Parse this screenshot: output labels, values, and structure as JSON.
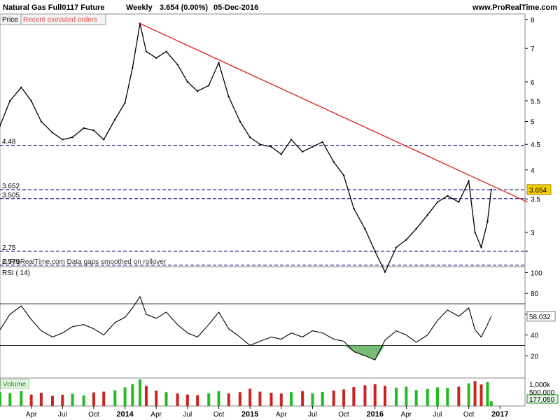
{
  "header": {
    "title": "Natural Gas Full0117 Future",
    "period": "Weekly",
    "price_change": "3.654 (0.00%)",
    "date": "05-Dec-2016",
    "website": "www.ProRealTime.com"
  },
  "tabs": {
    "price": "Price",
    "recent_orders": "Recent executed orders"
  },
  "notice": "© ProRealTime.com Data gaps smoothed on rollover",
  "colors": {
    "up_volume": "#22bb22",
    "down_volume": "#cc2222",
    "trendline": "#e02020",
    "level_line": "#000080",
    "last_price_bg": "#f5d000",
    "rsi_fill_low": "#55aa55"
  },
  "x_axis_labels": [
    {
      "label": "Apr",
      "x": 2013.25
    },
    {
      "label": "Jul",
      "x": 2013.5
    },
    {
      "label": "Oct",
      "x": 2013.75
    },
    {
      "label": "2014",
      "x": 2014.0
    },
    {
      "label": "Apr",
      "x": 2014.25
    },
    {
      "label": "Jul",
      "x": 2014.5
    },
    {
      "label": "Oct",
      "x": 2014.75
    },
    {
      "label": "2015",
      "x": 2015.0
    },
    {
      "label": "Apr",
      "x": 2015.25
    },
    {
      "label": "Jul",
      "x": 2015.5
    },
    {
      "label": "Oct",
      "x": 2015.75
    },
    {
      "label": "2016",
      "x": 2016.0
    },
    {
      "label": "Apr",
      "x": 2016.25
    },
    {
      "label": "Jul",
      "x": 2016.5
    },
    {
      "label": "Oct",
      "x": 2016.75
    },
    {
      "label": "2017",
      "x": 2017.0
    }
  ],
  "chart_data": [
    {
      "type": "line",
      "panel": "price",
      "ylim": [
        2.57,
        8.15
      ],
      "log_scale": true,
      "y_ticks": [
        2.75,
        3,
        3.5,
        4,
        4.5,
        5,
        5.5,
        6,
        7,
        8
      ],
      "y_tick_labels": [
        "",
        "3",
        "3.5",
        "4",
        "4.5",
        "5",
        "5.5",
        "6",
        "7",
        "8"
      ],
      "x_range": [
        2013.0,
        2017.2
      ],
      "horizontal_levels": [
        {
          "value": 4.48,
          "label": "4.48"
        },
        {
          "value": 3.652,
          "label": "3.652"
        },
        {
          "value": 3.505,
          "label": "3.505"
        },
        {
          "value": 2.75,
          "label": "2.75"
        },
        {
          "value": 2.579,
          "label": "2.579"
        }
      ],
      "trendline": {
        "x": [
          2014.12,
          2017.22
        ],
        "y": [
          7.85,
          3.45
        ]
      },
      "last_price": 3.654,
      "x": [
        2013.0,
        2013.08,
        2013.17,
        2013.25,
        2013.33,
        2013.42,
        2013.5,
        2013.58,
        2013.67,
        2013.75,
        2013.83,
        2013.92,
        2014.0,
        2014.06,
        2014.12,
        2014.17,
        2014.25,
        2014.33,
        2014.42,
        2014.5,
        2014.58,
        2014.67,
        2014.75,
        2014.83,
        2014.92,
        2015.0,
        2015.08,
        2015.17,
        2015.25,
        2015.33,
        2015.42,
        2015.5,
        2015.58,
        2015.67,
        2015.75,
        2015.83,
        2015.92,
        2016.0,
        2016.08,
        2016.17,
        2016.25,
        2016.33,
        2016.42,
        2016.5,
        2016.58,
        2016.67,
        2016.75,
        2016.8,
        2016.85,
        2016.9,
        2016.93
      ],
      "y": [
        4.9,
        5.5,
        5.85,
        5.5,
        5.0,
        4.75,
        4.6,
        4.65,
        4.85,
        4.8,
        4.6,
        5.05,
        5.45,
        6.4,
        7.85,
        6.9,
        6.7,
        6.9,
        6.5,
        6.0,
        5.75,
        5.9,
        6.55,
        5.6,
        5.0,
        4.65,
        4.5,
        4.45,
        4.3,
        4.6,
        4.35,
        4.45,
        4.55,
        4.15,
        3.9,
        3.35,
        3.05,
        2.75,
        2.5,
        2.8,
        2.9,
        3.05,
        3.25,
        3.45,
        3.55,
        3.45,
        3.8,
        3.0,
        2.8,
        3.15,
        3.654
      ]
    },
    {
      "type": "line",
      "panel": "rsi",
      "title": "RSI ( 14)",
      "ylim": [
        0,
        105
      ],
      "y_ticks": [
        20,
        40,
        60,
        80,
        100
      ],
      "levels": [
        70,
        30
      ],
      "last_value": 58.032,
      "x": [
        2013.0,
        2013.08,
        2013.17,
        2013.25,
        2013.33,
        2013.42,
        2013.5,
        2013.58,
        2013.67,
        2013.75,
        2013.83,
        2013.92,
        2014.0,
        2014.06,
        2014.12,
        2014.17,
        2014.25,
        2014.33,
        2014.42,
        2014.5,
        2014.58,
        2014.67,
        2014.75,
        2014.83,
        2014.92,
        2015.0,
        2015.08,
        2015.17,
        2015.25,
        2015.33,
        2015.42,
        2015.5,
        2015.58,
        2015.67,
        2015.75,
        2015.83,
        2015.92,
        2016.0,
        2016.08,
        2016.17,
        2016.25,
        2016.33,
        2016.42,
        2016.5,
        2016.58,
        2016.67,
        2016.75,
        2016.8,
        2016.85,
        2016.9,
        2016.93
      ],
      "y": [
        45,
        60,
        68,
        55,
        44,
        38,
        42,
        48,
        50,
        46,
        40,
        52,
        57,
        66,
        77,
        60,
        56,
        62,
        50,
        42,
        38,
        50,
        62,
        46,
        38,
        30,
        34,
        38,
        36,
        42,
        38,
        44,
        42,
        36,
        34,
        24,
        20,
        16,
        35,
        44,
        40,
        33,
        40,
        54,
        64,
        58,
        66,
        45,
        38,
        50,
        58.032
      ]
    },
    {
      "type": "bar",
      "panel": "volume",
      "title": "Volume",
      "y_tick_labels": [
        "1,000k",
        "500,000"
      ],
      "ylim": [
        0,
        1000000
      ],
      "last_value": "177,050",
      "x": [
        2013.0,
        2013.08,
        2013.17,
        2013.25,
        2013.33,
        2013.42,
        2013.5,
        2013.58,
        2013.67,
        2013.75,
        2013.83,
        2013.92,
        2014.0,
        2014.06,
        2014.12,
        2014.17,
        2014.25,
        2014.33,
        2014.42,
        2014.5,
        2014.58,
        2014.67,
        2014.75,
        2014.83,
        2014.92,
        2015.0,
        2015.08,
        2015.17,
        2015.25,
        2015.33,
        2015.42,
        2015.5,
        2015.58,
        2015.67,
        2015.75,
        2015.83,
        2015.92,
        2016.0,
        2016.08,
        2016.17,
        2016.25,
        2016.33,
        2016.42,
        2016.5,
        2016.58,
        2016.67,
        2016.75,
        2016.8,
        2016.85,
        2016.9,
        2016.93
      ],
      "values": [
        520000,
        480000,
        560000,
        430000,
        500000,
        380000,
        420000,
        460000,
        400000,
        510000,
        540000,
        590000,
        700000,
        820000,
        1050000,
        760000,
        580000,
        520000,
        470000,
        430000,
        410000,
        480000,
        560000,
        470000,
        520000,
        650000,
        540000,
        500000,
        470000,
        520000,
        560000,
        480000,
        530000,
        580000,
        620000,
        710000,
        780000,
        820000,
        760000,
        690000,
        720000,
        600000,
        640000,
        700000,
        680000,
        730000,
        850000,
        940000,
        810000,
        900000,
        177050
      ],
      "direction": [
        "up",
        "up",
        "up",
        "down",
        "down",
        "down",
        "down",
        "up",
        "up",
        "down",
        "down",
        "up",
        "up",
        "up",
        "up",
        "down",
        "down",
        "up",
        "down",
        "down",
        "down",
        "up",
        "up",
        "down",
        "down",
        "down",
        "down",
        "down",
        "down",
        "up",
        "down",
        "up",
        "up",
        "down",
        "down",
        "down",
        "down",
        "down",
        "down",
        "up",
        "up",
        "up",
        "up",
        "up",
        "up",
        "down",
        "up",
        "down",
        "down",
        "up",
        "up"
      ]
    }
  ]
}
